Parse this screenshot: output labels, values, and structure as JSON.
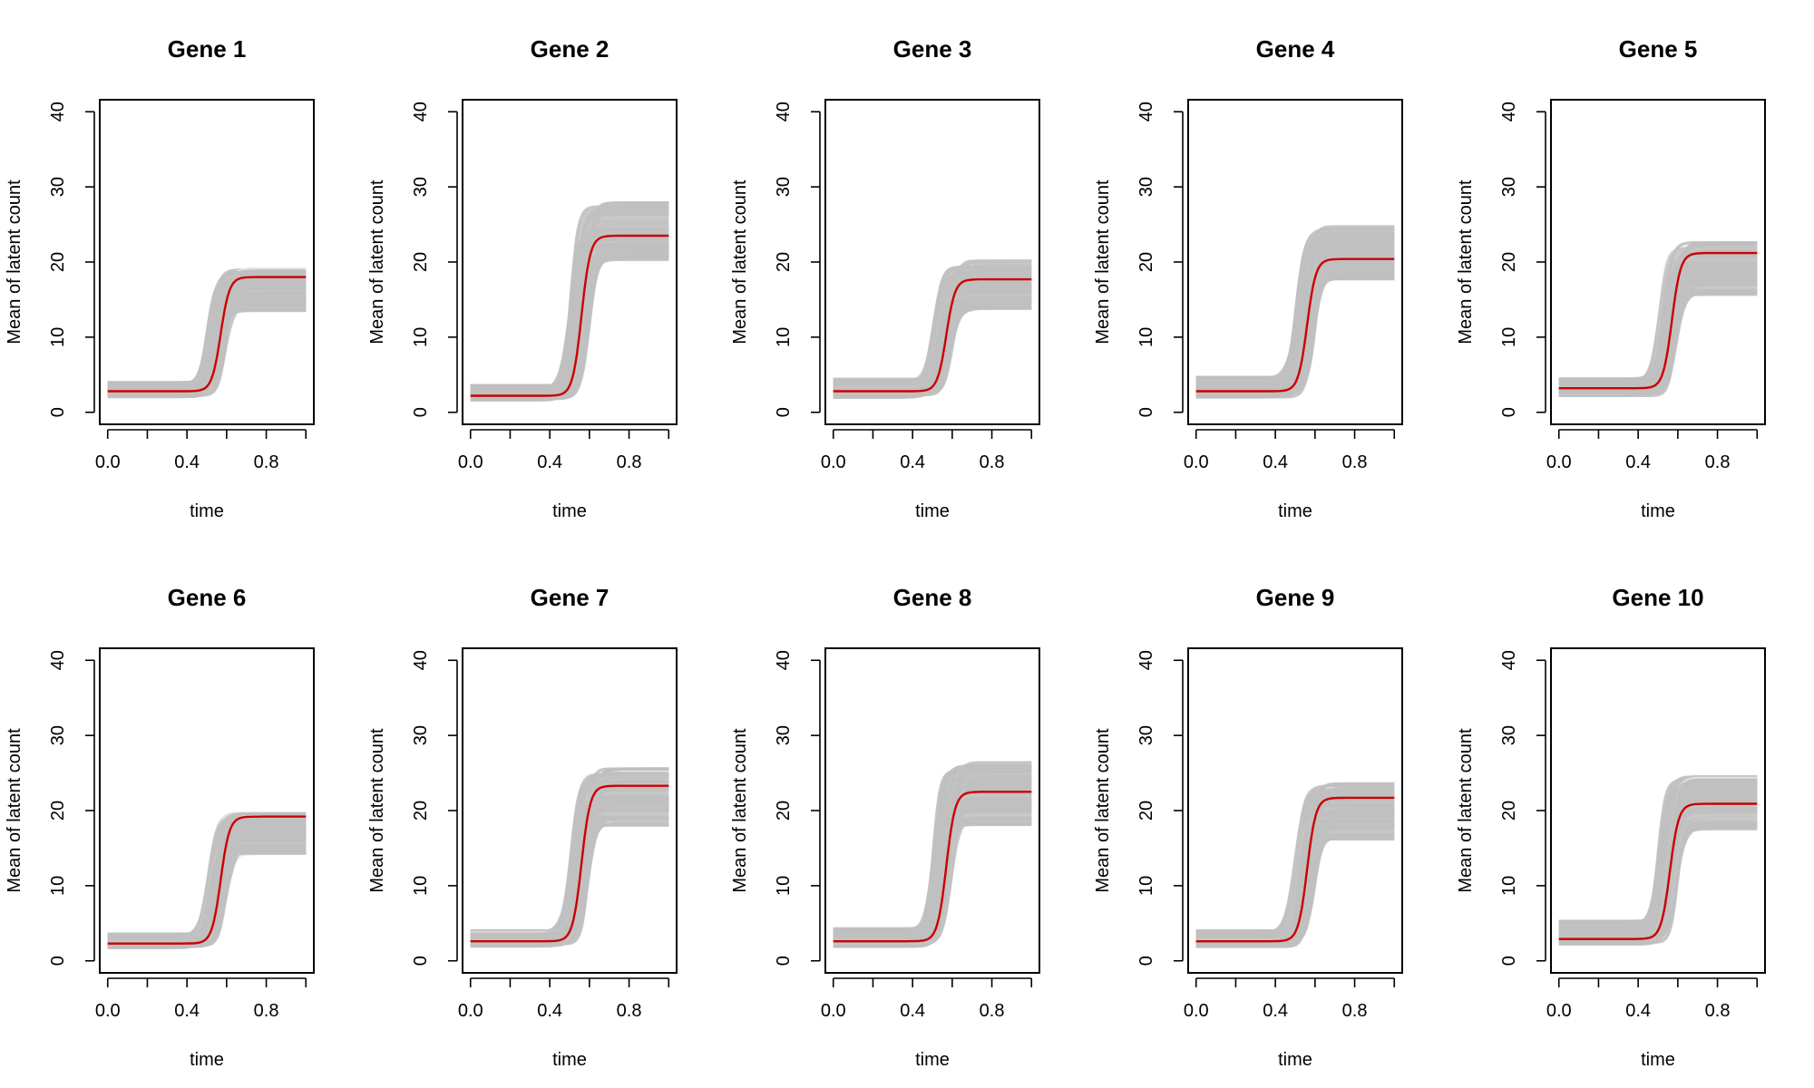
{
  "colors": {
    "mean_line": "#cc0000",
    "band": "#bfbfbf",
    "band_edge": "#e2e2e2",
    "axis": "#000000"
  },
  "chart_data": [
    {
      "type": "line",
      "title": "Gene 1",
      "xlabel": "time",
      "ylabel": "Mean of latent count",
      "xlim": [
        0,
        1
      ],
      "ylim": [
        0,
        40
      ],
      "xticks": [
        0.0,
        0.2,
        0.4,
        0.6,
        0.8,
        1.0
      ],
      "xtick_labels": [
        "0.0",
        "0.4",
        "0.8"
      ],
      "xtick_label_values": [
        0.0,
        0.4,
        0.8
      ],
      "yticks": [
        0,
        10,
        20,
        30,
        40
      ],
      "ytick_labels": [
        "0",
        "10",
        "20",
        "30",
        "40"
      ],
      "series": [
        {
          "name": "mean",
          "low": 2.8,
          "high": 18.0,
          "midpoint": 0.57,
          "steepness": 45
        }
      ],
      "band": {
        "low": [
          2.0,
          4.0
        ],
        "high": [
          13.5,
          19.2
        ],
        "midpoint_range": [
          0.5,
          0.6
        ]
      }
    },
    {
      "type": "line",
      "title": "Gene 2",
      "xlabel": "time",
      "ylabel": "Mean of latent count",
      "xlim": [
        0,
        1
      ],
      "ylim": [
        0,
        40
      ],
      "xticks": [
        0.0,
        0.2,
        0.4,
        0.6,
        0.8,
        1.0
      ],
      "xtick_labels": [
        "0.0",
        "0.4",
        "0.8"
      ],
      "xtick_label_values": [
        0.0,
        0.4,
        0.8
      ],
      "yticks": [
        0,
        10,
        20,
        30,
        40
      ],
      "ytick_labels": [
        "0",
        "10",
        "20",
        "30",
        "40"
      ],
      "series": [
        {
          "name": "mean",
          "low": 2.2,
          "high": 23.5,
          "midpoint": 0.56,
          "steepness": 45
        }
      ],
      "band": {
        "low": [
          1.6,
          3.6
        ],
        "high": [
          20.3,
          28.0
        ],
        "midpoint_range": [
          0.5,
          0.6
        ]
      }
    },
    {
      "type": "line",
      "title": "Gene 3",
      "xlabel": "time",
      "ylabel": "Mean of latent count",
      "xlim": [
        0,
        1
      ],
      "ylim": [
        0,
        40
      ],
      "xticks": [
        0.0,
        0.2,
        0.4,
        0.6,
        0.8,
        1.0
      ],
      "xtick_labels": [
        "0.0",
        "0.4",
        "0.8"
      ],
      "xtick_label_values": [
        0.0,
        0.4,
        0.8
      ],
      "yticks": [
        0,
        10,
        20,
        30,
        40
      ],
      "ytick_labels": [
        "0",
        "10",
        "20",
        "30",
        "40"
      ],
      "series": [
        {
          "name": "mean",
          "low": 2.8,
          "high": 17.7,
          "midpoint": 0.57,
          "steepness": 45
        }
      ],
      "band": {
        "low": [
          2.0,
          4.5
        ],
        "high": [
          13.8,
          20.2
        ],
        "midpoint_range": [
          0.5,
          0.6
        ]
      }
    },
    {
      "type": "line",
      "title": "Gene 4",
      "xlabel": "time",
      "ylabel": "Mean of latent count",
      "xlim": [
        0,
        1
      ],
      "ylim": [
        0,
        40
      ],
      "xticks": [
        0.0,
        0.2,
        0.4,
        0.6,
        0.8,
        1.0
      ],
      "xtick_labels": [
        "0.0",
        "0.4",
        "0.8"
      ],
      "xtick_label_values": [
        0.0,
        0.4,
        0.8
      ],
      "yticks": [
        0,
        10,
        20,
        30,
        40
      ],
      "ytick_labels": [
        "0",
        "10",
        "20",
        "30",
        "40"
      ],
      "series": [
        {
          "name": "mean",
          "low": 2.8,
          "high": 20.4,
          "midpoint": 0.56,
          "steepness": 45
        }
      ],
      "band": {
        "low": [
          2.0,
          4.7
        ],
        "high": [
          17.5,
          25.0
        ],
        "midpoint_range": [
          0.5,
          0.6
        ]
      }
    },
    {
      "type": "line",
      "title": "Gene 5",
      "xlabel": "time",
      "ylabel": "Mean of latent count",
      "xlim": [
        0,
        1
      ],
      "ylim": [
        0,
        40
      ],
      "xticks": [
        0.0,
        0.2,
        0.4,
        0.6,
        0.8,
        1.0
      ],
      "xtick_labels": [
        "0.0",
        "0.4",
        "0.8"
      ],
      "xtick_label_values": [
        0.0,
        0.4,
        0.8
      ],
      "yticks": [
        0,
        10,
        20,
        30,
        40
      ],
      "ytick_labels": [
        "0",
        "10",
        "20",
        "30",
        "40"
      ],
      "series": [
        {
          "name": "mean",
          "low": 3.2,
          "high": 21.2,
          "midpoint": 0.57,
          "steepness": 45
        }
      ],
      "band": {
        "low": [
          2.2,
          4.5
        ],
        "high": [
          15.3,
          22.8
        ],
        "midpoint_range": [
          0.5,
          0.6
        ]
      }
    },
    {
      "type": "line",
      "title": "Gene 6",
      "xlabel": "time",
      "ylabel": "Mean of latent count",
      "xlim": [
        0,
        1
      ],
      "ylim": [
        0,
        40
      ],
      "xticks": [
        0.0,
        0.2,
        0.4,
        0.6,
        0.8,
        1.0
      ],
      "xtick_labels": [
        "0.0",
        "0.4",
        "0.8"
      ],
      "xtick_label_values": [
        0.0,
        0.4,
        0.8
      ],
      "yticks": [
        0,
        10,
        20,
        30,
        40
      ],
      "ytick_labels": [
        "0",
        "10",
        "20",
        "30",
        "40"
      ],
      "series": [
        {
          "name": "mean",
          "low": 2.3,
          "high": 19.2,
          "midpoint": 0.57,
          "steepness": 45
        }
      ],
      "band": {
        "low": [
          1.7,
          3.6
        ],
        "high": [
          14.2,
          19.8
        ],
        "midpoint_range": [
          0.5,
          0.6
        ]
      }
    },
    {
      "type": "line",
      "title": "Gene 7",
      "xlabel": "time",
      "ylabel": "Mean of latent count",
      "xlim": [
        0,
        1
      ],
      "ylim": [
        0,
        40
      ],
      "xticks": [
        0.0,
        0.2,
        0.4,
        0.6,
        0.8,
        1.0
      ],
      "xtick_labels": [
        "0.0",
        "0.4",
        "0.8"
      ],
      "xtick_label_values": [
        0.0,
        0.4,
        0.8
      ],
      "yticks": [
        0,
        10,
        20,
        30,
        40
      ],
      "ytick_labels": [
        "0",
        "10",
        "20",
        "30",
        "40"
      ],
      "series": [
        {
          "name": "mean",
          "low": 2.6,
          "high": 23.3,
          "midpoint": 0.56,
          "steepness": 45
        }
      ],
      "band": {
        "low": [
          1.9,
          4.0
        ],
        "high": [
          18.0,
          25.8
        ],
        "midpoint_range": [
          0.5,
          0.6
        ]
      }
    },
    {
      "type": "line",
      "title": "Gene 8",
      "xlabel": "time",
      "ylabel": "Mean of latent count",
      "xlim": [
        0,
        1
      ],
      "ylim": [
        0,
        40
      ],
      "xticks": [
        0.0,
        0.2,
        0.4,
        0.6,
        0.8,
        1.0
      ],
      "xtick_labels": [
        "0.0",
        "0.4",
        "0.8"
      ],
      "xtick_label_values": [
        0.0,
        0.4,
        0.8
      ],
      "yticks": [
        0,
        10,
        20,
        30,
        40
      ],
      "ytick_labels": [
        "0",
        "10",
        "20",
        "30",
        "40"
      ],
      "series": [
        {
          "name": "mean",
          "low": 2.6,
          "high": 22.5,
          "midpoint": 0.57,
          "steepness": 45
        }
      ],
      "band": {
        "low": [
          1.9,
          4.3
        ],
        "high": [
          18.0,
          26.4
        ],
        "midpoint_range": [
          0.5,
          0.6
        ]
      }
    },
    {
      "type": "line",
      "title": "Gene 9",
      "xlabel": "time",
      "ylabel": "Mean of latent count",
      "xlim": [
        0,
        1
      ],
      "ylim": [
        0,
        40
      ],
      "xticks": [
        0.0,
        0.2,
        0.4,
        0.6,
        0.8,
        1.0
      ],
      "xtick_labels": [
        "0.0",
        "0.4",
        "0.8"
      ],
      "xtick_label_values": [
        0.0,
        0.4,
        0.8
      ],
      "yticks": [
        0,
        10,
        20,
        30,
        40
      ],
      "ytick_labels": [
        "0",
        "10",
        "20",
        "30",
        "40"
      ],
      "series": [
        {
          "name": "mean",
          "low": 2.6,
          "high": 21.7,
          "midpoint": 0.56,
          "steepness": 45
        }
      ],
      "band": {
        "low": [
          1.9,
          4.0
        ],
        "high": [
          16.2,
          23.6
        ],
        "midpoint_range": [
          0.5,
          0.6
        ]
      }
    },
    {
      "type": "line",
      "title": "Gene 10",
      "xlabel": "time",
      "ylabel": "Mean of latent count",
      "xlim": [
        0,
        1
      ],
      "ylim": [
        0,
        40
      ],
      "xticks": [
        0.0,
        0.2,
        0.4,
        0.6,
        0.8,
        1.0
      ],
      "xtick_labels": [
        "0.0",
        "0.4",
        "0.8"
      ],
      "xtick_label_values": [
        0.0,
        0.4,
        0.8
      ],
      "yticks": [
        0,
        10,
        20,
        30,
        40
      ],
      "ytick_labels": [
        "0",
        "10",
        "20",
        "30",
        "40"
      ],
      "series": [
        {
          "name": "mean",
          "low": 2.9,
          "high": 20.9,
          "midpoint": 0.56,
          "steepness": 45
        }
      ],
      "band": {
        "low": [
          2.2,
          5.3
        ],
        "high": [
          17.5,
          24.5
        ],
        "midpoint_range": [
          0.5,
          0.6
        ]
      }
    }
  ]
}
